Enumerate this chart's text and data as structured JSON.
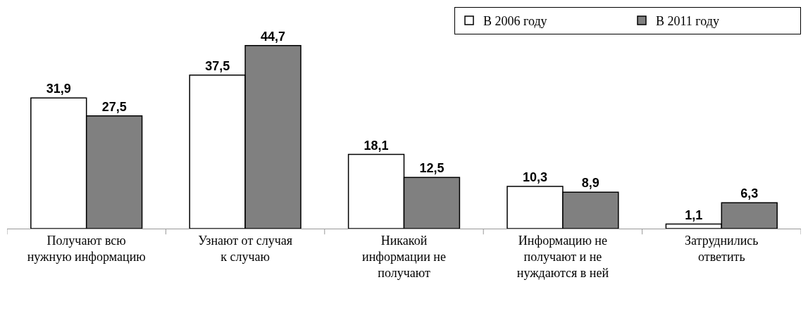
{
  "chart_data": {
    "type": "bar",
    "categories": [
      "Получают всю нужную информацию",
      "Узнают от случая к случаю",
      "Никакой информации не получают",
      "Информацию не получают и не нуждаются в ней",
      "Затруднились ответить"
    ],
    "series": [
      {
        "name": "В 2006 году",
        "color": "#ffffff",
        "values": [
          31.9,
          37.5,
          18.1,
          10.3,
          1.1
        ],
        "value_labels": [
          "31,9",
          "37,5",
          "18,1",
          "10,3",
          "1,1"
        ]
      },
      {
        "name": "В 2011 году",
        "color": "#808080",
        "values": [
          27.5,
          44.7,
          12.5,
          8.9,
          6.3
        ],
        "value_labels": [
          "27,5",
          "44,7",
          "12,5",
          "8,9",
          "6,3"
        ]
      }
    ],
    "legend": "top right"
  }
}
